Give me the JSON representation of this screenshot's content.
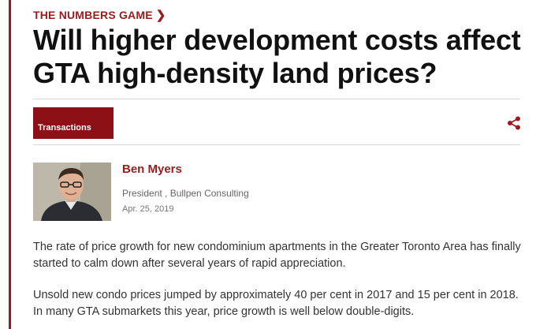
{
  "section": {
    "label": "THE NUMBERS GAME",
    "chevron": "chevron-right-icon"
  },
  "article": {
    "headline": "Will higher development costs affect GTA high-density land prices?",
    "tag": "Transactions",
    "share_icon": "share-icon"
  },
  "author": {
    "name": "Ben Myers",
    "role": "President , Bullpen Consulting",
    "date": "Apr. 25, 2019"
  },
  "body": {
    "paragraphs": [
      "The rate of price growth for new condominium apartments in the Greater Toronto Area has finally started to calm down after several years of rapid appreciation.",
      "Unsold new condo prices jumped by approximately 40 per cent in 2017 and 15 per cent in 2018. In many GTA submarkets this year, price growth is well below double-digits."
    ]
  },
  "colors": {
    "accent": "#9b1b1f",
    "tag_bg": "#8c1015",
    "text": "#333333",
    "headline": "#111111"
  }
}
